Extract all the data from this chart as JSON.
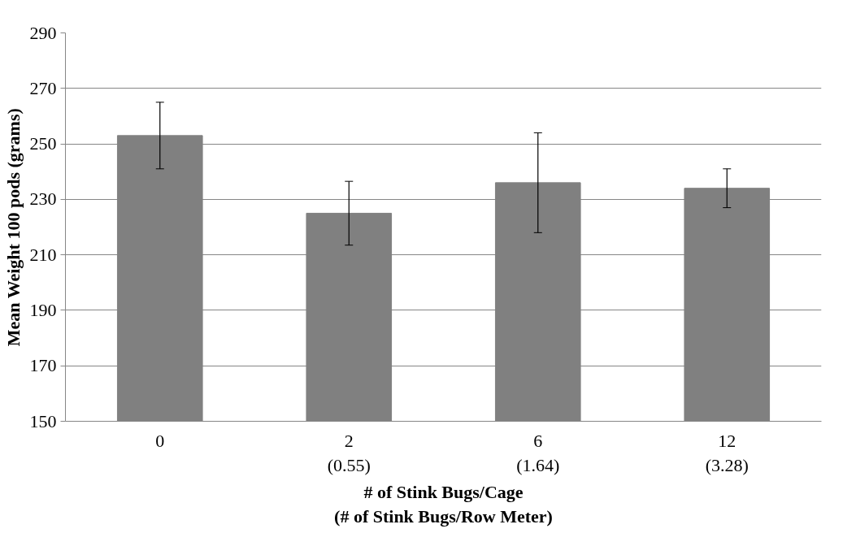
{
  "chart_data": {
    "type": "bar",
    "xlabel": "# of Stink Bugs/Cage\n(# of Stink Bugs/Row Meter)",
    "ylabel": "Mean Weight 100 pods (grams)",
    "categories": [
      "0",
      "2\n(0.55)",
      "6\n(1.64)",
      "12\n(3.28)"
    ],
    "values": [
      253,
      225,
      236,
      234
    ],
    "errors": [
      12,
      11.5,
      18,
      7
    ],
    "color": "#808080",
    "ylim": [
      150,
      290
    ],
    "yticks": [
      150,
      170,
      190,
      210,
      230,
      250,
      270,
      290
    ],
    "grid": "y"
  }
}
